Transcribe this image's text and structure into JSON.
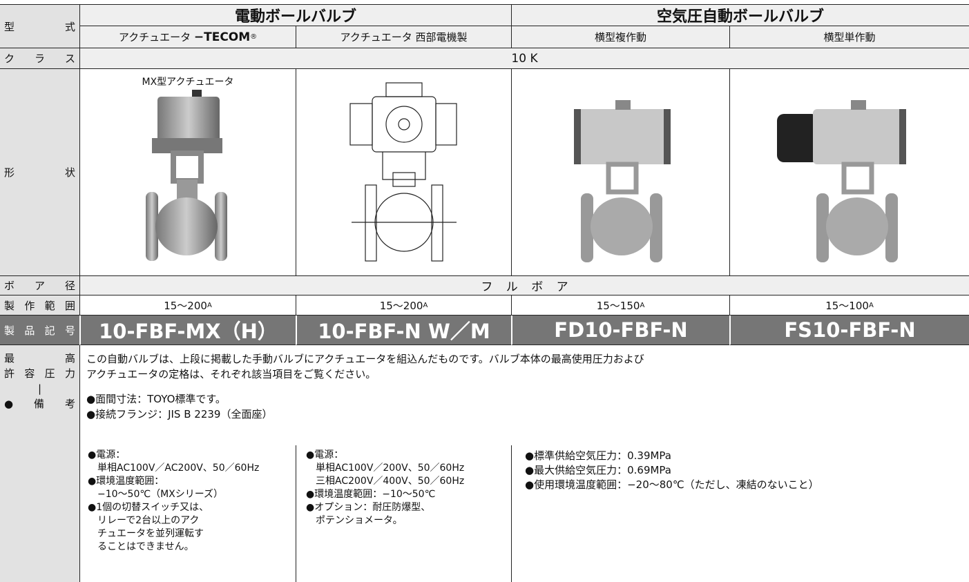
{
  "table": {
    "header": {
      "label": "型式",
      "groups": [
        "電動ボールバルブ",
        "空気圧自動ボールバルブ"
      ],
      "columns": [
        {
          "prefix": "アクチュエータ ",
          "brand": "−TECOM",
          "mark": "®"
        },
        {
          "prefix": "アクチュエータ 西部電機製"
        },
        {
          "prefix": "横型複作動"
        },
        {
          "prefix": "横型単作動"
        }
      ]
    },
    "class": {
      "label": "クラス",
      "value": "10 K"
    },
    "shape": {
      "label": "形状",
      "caption": "MX型アクチュエータ"
    },
    "bore": {
      "label": "ボア径",
      "value": "フ ル ボ ア"
    },
    "range": {
      "label": "製作範囲",
      "values": [
        {
          "value": "15〜200",
          "unit": "A"
        },
        {
          "value": "15〜200",
          "unit": "A"
        },
        {
          "value": "15〜150",
          "unit": "A"
        },
        {
          "value": "15〜100",
          "unit": "A"
        }
      ]
    },
    "product": {
      "label": "製品記号",
      "values": [
        "10-FBF-MX（H）",
        "10-FBF-N W／M",
        "FD10-FBF-N",
        "FS10-FBF-N"
      ]
    },
    "remarks": {
      "label": [
        "最高",
        "許容圧力",
        "|",
        "●備考"
      ],
      "common": [
        "この自動バルブは、上段に掲載した手動バルブにアクチュエータを組込んだものです。バルブ本体の最高使用圧力および",
        "アクチュエータの定格は、それぞれ該当項目をご覧ください。"
      ],
      "general": [
        "●面間寸法：TOYO標準です。",
        "●接続フランジ：JIS B 2239（全面座）"
      ],
      "columns": [
        [
          {
            "head": "●電源：",
            "lines": [
              "単相AC100V／AC200V、50／60Hz"
            ]
          },
          {
            "head": "●環境温度範囲：",
            "lines": [
              "−10〜50℃（MXシリーズ）"
            ]
          },
          {
            "head": "●1個の切替スイッチ又は、",
            "lines": [
              "リレーで2台以上のアク",
              "チュエータを並列運転す",
              "ることはできません。"
            ]
          }
        ],
        [
          {
            "head": "●電源：",
            "lines": [
              "単相AC100V／200V、50／60Hz",
              "三相AC200V／400V、50／60Hz"
            ]
          },
          {
            "head": "●環境温度範囲：−10〜50℃",
            "lines": []
          },
          {
            "head": "●オプション：耐圧防爆型、",
            "lines": [
              "ポテンショメータ。"
            ]
          }
        ],
        [
          {
            "head": "●標準供給空気圧力：0.39MPa",
            "lines": []
          },
          {
            "head": "●最大供給空気圧力：0.69MPa",
            "lines": []
          },
          {
            "head": "●使用環境温度範囲：−20〜80℃（ただし、凍結のないこと）",
            "lines": []
          }
        ]
      ]
    }
  }
}
